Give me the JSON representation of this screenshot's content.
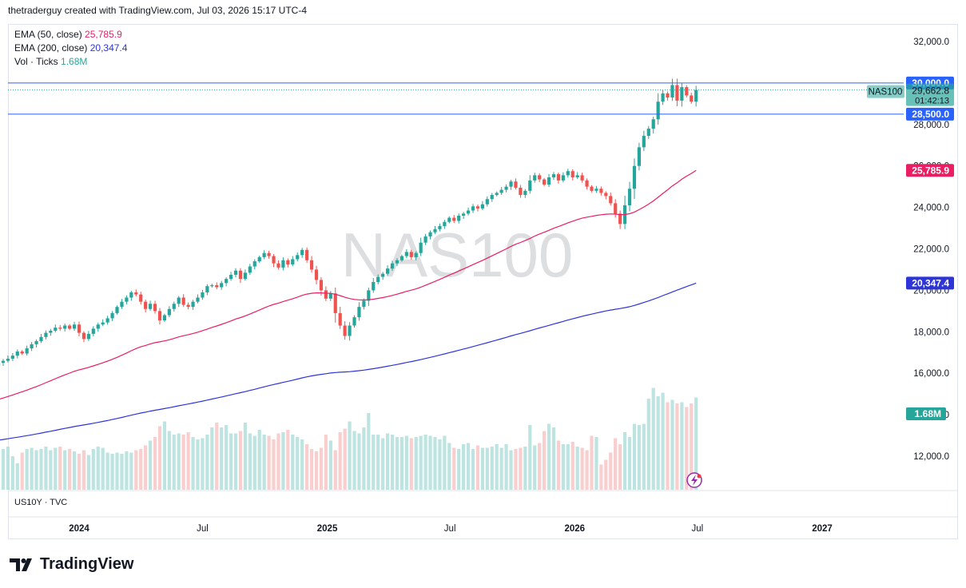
{
  "header": {
    "text": "thetraderguy created with TradingView.com, Jul 03, 2026 15:17 UTC-4"
  },
  "legend": [
    {
      "name": "EMA (50, close)",
      "value": "25,785.9",
      "color": "#e91e63"
    },
    {
      "name": "EMA (200, close)",
      "value": "20,347.4",
      "color": "#2e35d8"
    },
    {
      "name": "Vol · Ticks",
      "value": "1.68M",
      "color": "#26a69a"
    }
  ],
  "pane2_label": "US10Y · TVC",
  "watermark": "NAS100",
  "symbol_tag": "NAS100",
  "brand": "TradingView",
  "colors": {
    "up": "#26a69a",
    "down": "#ef5350",
    "ema50": "#e91e63",
    "ema200": "#2e35d8",
    "hline": "#2962ff"
  },
  "chart_data": {
    "type": "candlestick",
    "symbol": "NAS100",
    "timeframe": "weekly",
    "y_ticks": [
      "32,000.0",
      "30,000.0",
      "28,000.0",
      "26,000.0",
      "24,000.0",
      "22,000.0",
      "20,000.0",
      "18,000.0",
      "16,000.0",
      "14,000.0",
      "12,000.0"
    ],
    "ylim": [
      11500,
      32400
    ],
    "x_ticks": [
      {
        "label": "2024",
        "date": "2024-01-01"
      },
      {
        "label": "Jul",
        "date": "2024-07-01"
      },
      {
        "label": "2025",
        "date": "2025-01-01"
      },
      {
        "label": "Jul",
        "date": "2025-07-01"
      },
      {
        "label": "2026",
        "date": "2026-01-01"
      },
      {
        "label": "Jul",
        "date": "2026-07-01"
      },
      {
        "label": "2027",
        "date": "2027-01-01"
      }
    ],
    "horizontal_lines": [
      {
        "value": 30000,
        "label": "30,000.0"
      },
      {
        "value": 28500,
        "label": "28,500.0"
      }
    ],
    "last_price": {
      "value": 29662.8,
      "label": "29,662.8",
      "countdown": "01:42:13"
    },
    "ema50_last": {
      "value": 25785.9,
      "label": "25,785.9"
    },
    "ema200_last": {
      "value": 20347.4,
      "label": "20,347.4"
    },
    "volume_last_label": "1.68M",
    "candles_close": [
      14800,
      14650,
      14750,
      14600,
      14900,
      15200,
      15150,
      15400,
      15600,
      15850,
      15900,
      15950,
      16150,
      16050,
      16350,
      16500,
      16600,
      16700,
      16850,
      17050,
      16950,
      17200,
      17400,
      17550,
      17750,
      17950,
      18050,
      18200,
      18150,
      18300,
      18150,
      18350,
      17950,
      17650,
      17900,
      18150,
      18350,
      18450,
      18650,
      18900,
      19200,
      19450,
      19650,
      19900,
      19800,
      19450,
      19100,
      19350,
      19000,
      18550,
      18800,
      19100,
      19350,
      19650,
      19300,
      19200,
      19450,
      19650,
      19900,
      20200,
      20250,
      20150,
      20350,
      20550,
      20750,
      20950,
      20550,
      20850,
      21150,
      21400,
      21600,
      21800,
      21650,
      21300,
      21100,
      21450,
      21250,
      21500,
      21700,
      21950,
      21450,
      21000,
      20500,
      20000,
      19600,
      19850,
      18900,
      18300,
      17800,
      18300,
      18700,
      19200,
      19500,
      20000,
      20400,
      20650,
      20800,
      21050,
      21300,
      21450,
      21650,
      21850,
      21600,
      21800,
      22300,
      22600,
      22800,
      22950,
      23100,
      23300,
      23500,
      23350,
      23600,
      23700,
      23850,
      24050,
      23950,
      24150,
      24400,
      24600,
      24700,
      24850,
      25000,
      25250,
      24950,
      24600,
      24800,
      25300,
      25550,
      25350,
      25100,
      25450,
      25600,
      25300,
      25550,
      25750,
      25450,
      25550,
      25300,
      25000,
      24800,
      24900,
      24700,
      24550,
      24200,
      23700,
      23200,
      24100,
      24900,
      26000,
      26900,
      27450,
      27800,
      28250,
      29100,
      29500,
      29300,
      29900,
      29150,
      29800,
      29400,
      29100,
      29662.8
    ],
    "ema50_start": 14000,
    "ema200_start": 12350,
    "volume_relative": [
      0.35,
      0.36,
      0.34,
      0.38,
      0.37,
      0.33,
      0.32,
      0.35,
      0.34,
      0.36,
      0.33,
      0.35,
      0.31,
      0.28,
      0.32,
      0.33,
      0.34,
      0.36,
      0.28,
      0.22,
      0.31,
      0.34,
      0.35,
      0.33,
      0.34,
      0.36,
      0.33,
      0.35,
      0.36,
      0.33,
      0.34,
      0.32,
      0.3,
      0.33,
      0.29,
      0.34,
      0.36,
      0.35,
      0.31,
      0.3,
      0.31,
      0.3,
      0.32,
      0.31,
      0.33,
      0.34,
      0.37,
      0.41,
      0.44,
      0.53,
      0.57,
      0.49,
      0.46,
      0.47,
      0.46,
      0.48,
      0.44,
      0.42,
      0.43,
      0.46,
      0.52,
      0.56,
      0.52,
      0.54,
      0.47,
      0.47,
      0.49,
      0.56,
      0.47,
      0.45,
      0.5,
      0.46,
      0.45,
      0.42,
      0.47,
      0.48,
      0.5,
      0.46,
      0.44,
      0.42,
      0.38,
      0.34,
      0.32,
      0.35,
      0.46,
      0.41,
      0.33,
      0.48,
      0.51,
      0.57,
      0.49,
      0.47,
      0.52,
      0.64,
      0.46,
      0.46,
      0.43,
      0.47,
      0.46,
      0.44,
      0.44,
      0.45,
      0.43,
      0.44,
      0.45,
      0.46,
      0.45,
      0.44,
      0.42,
      0.45,
      0.39,
      0.35,
      0.34,
      0.38,
      0.39,
      0.34,
      0.37,
      0.35,
      0.35,
      0.36,
      0.38,
      0.35,
      0.38,
      0.33,
      0.34,
      0.35,
      0.36,
      0.54,
      0.37,
      0.39,
      0.49,
      0.55,
      0.52,
      0.41,
      0.38,
      0.38,
      0.4,
      0.36,
      0.35,
      0.33,
      0.45,
      0.44,
      0.21,
      0.25,
      0.31,
      0.43,
      0.38,
      0.48,
      0.44,
      0.55,
      0.54,
      0.55,
      0.76,
      0.85,
      0.78,
      0.81,
      0.73,
      0.75,
      0.72,
      0.73,
      0.69,
      0.72,
      0.77,
      0.83,
      0.65,
      0.56,
      0.64,
      0.62,
      0.73,
      0.98,
      0.9,
      0.84,
      0.5
    ]
  }
}
